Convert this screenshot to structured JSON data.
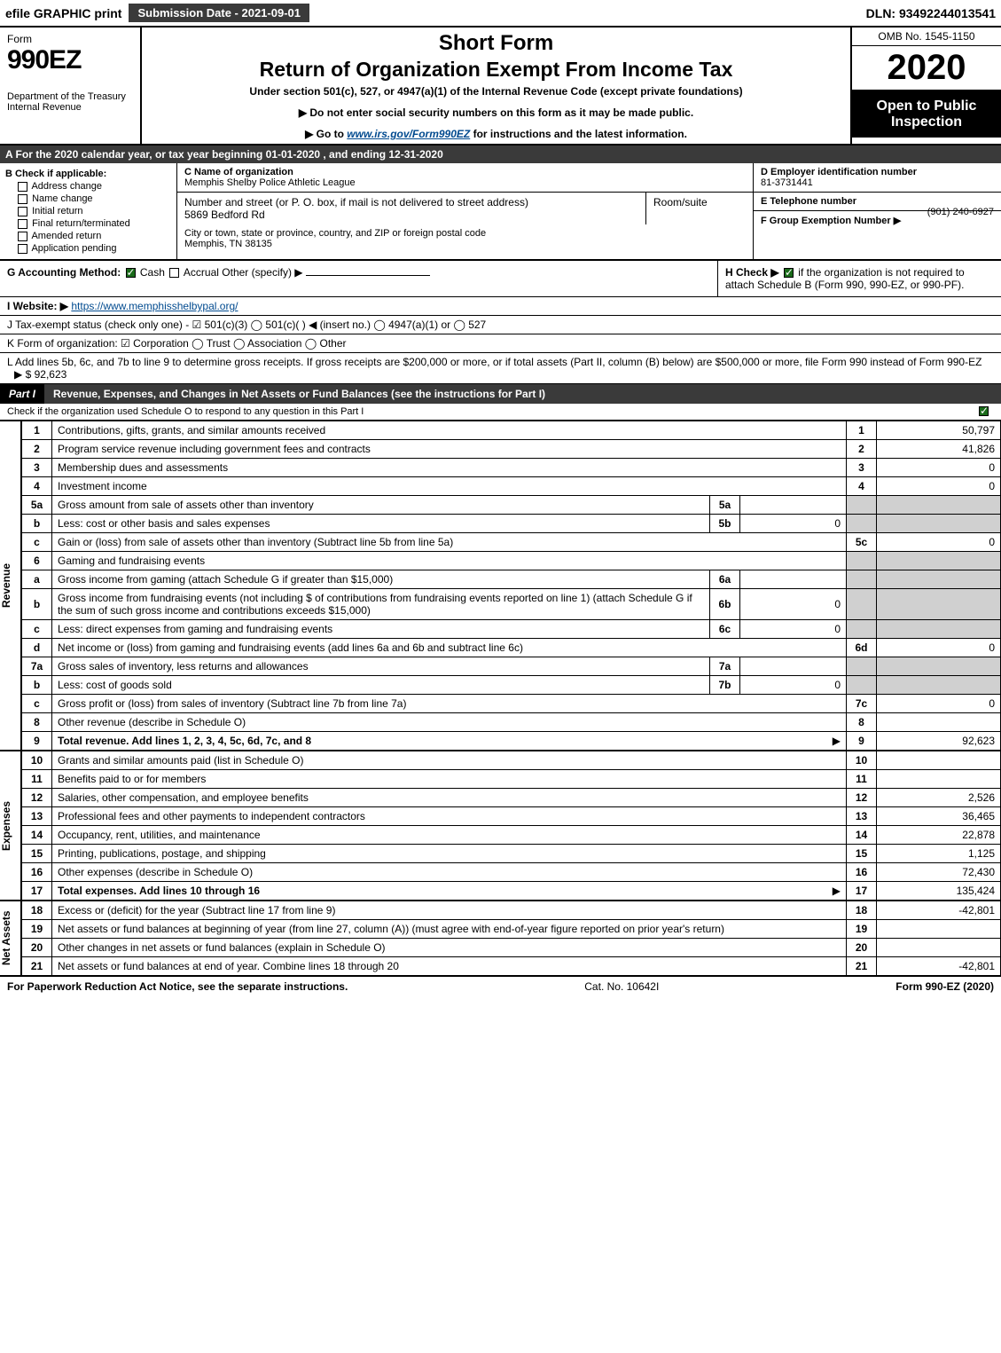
{
  "topbar": {
    "efile": "efile GRAPHIC print",
    "submission_btn": "Submission Date - 2021-09-01",
    "dln": "DLN: 93492244013541"
  },
  "header": {
    "form_label": "Form",
    "form_number": "990EZ",
    "dept": "Department of the Treasury Internal Revenue",
    "short_form": "Short Form",
    "return_title": "Return of Organization Exempt From Income Tax",
    "under_section": "Under section 501(c), 527, or 4947(a)(1) of the Internal Revenue Code (except private foundations)",
    "ssn_note": "▶ Do not enter social security numbers on this form as it may be made public.",
    "goto_note": "▶ Go to www.irs.gov/Form990EZ for instructions and the latest information.",
    "omb": "OMB No. 1545-1150",
    "year": "2020",
    "open_public": "Open to Public Inspection"
  },
  "section_a": "A  For the 2020 calendar year, or tax year beginning 01-01-2020 , and ending 12-31-2020",
  "section_b": {
    "title": "B  Check if applicable:",
    "items": [
      "Address change",
      "Name change",
      "Initial return",
      "Final return/terminated",
      "Amended return",
      "Application pending"
    ]
  },
  "section_c": {
    "label": "C Name of organization",
    "name": "Memphis Shelby Police Athletic League",
    "street_label": "Number and street (or P. O. box, if mail is not delivered to street address)",
    "street": "5869 Bedford Rd",
    "room_label": "Room/suite",
    "room": "",
    "city_label": "City or town, state or province, country, and ZIP or foreign postal code",
    "city": "Memphis, TN  38135"
  },
  "section_d": {
    "label": "D Employer identification number",
    "value": "81-3731441"
  },
  "section_e": {
    "label": "E Telephone number",
    "value": "(901) 240-6927"
  },
  "section_f": {
    "label": "F Group Exemption Number  ▶",
    "value": ""
  },
  "section_g": {
    "label": "G Accounting Method:",
    "cash": "Cash",
    "accrual": "Accrual",
    "other": "Other (specify) ▶"
  },
  "section_h": {
    "label": "H  Check ▶",
    "text": "if the organization is not required to attach Schedule B (Form 990, 990-EZ, or 990-PF)."
  },
  "section_i": {
    "label": "I Website: ▶",
    "url": "https://www.memphisshelbypal.org/"
  },
  "section_j": "J Tax-exempt status (check only one) -  ☑ 501(c)(3)  ◯ 501(c)(  ) ◀ (insert no.)  ◯ 4947(a)(1) or  ◯ 527",
  "section_k": "K Form of organization:   ☑ Corporation   ◯ Trust   ◯ Association   ◯ Other",
  "section_l": {
    "text": "L Add lines 5b, 6c, and 7b to line 9 to determine gross receipts. If gross receipts are $200,000 or more, or if total assets (Part II, column (B) below) are $500,000 or more, file Form 990 instead of Form 990-EZ",
    "arrow": "▶ $",
    "value": "92,623"
  },
  "part1": {
    "tab": "Part I",
    "title": "Revenue, Expenses, and Changes in Net Assets or Fund Balances (see the instructions for Part I)",
    "subcheck": "Check if the organization used Schedule O to respond to any question in this Part I"
  },
  "side_labels": {
    "revenue": "Revenue",
    "expenses": "Expenses",
    "net_assets": "Net Assets"
  },
  "revenue_lines": [
    {
      "num": "1",
      "desc": "Contributions, gifts, grants, and similar amounts received",
      "ref": "1",
      "val": "50,797"
    },
    {
      "num": "2",
      "desc": "Program service revenue including government fees and contracts",
      "ref": "2",
      "val": "41,826"
    },
    {
      "num": "3",
      "desc": "Membership dues and assessments",
      "ref": "3",
      "val": "0"
    },
    {
      "num": "4",
      "desc": "Investment income",
      "ref": "4",
      "val": "0"
    },
    {
      "num": "5a",
      "desc": "Gross amount from sale of assets other than inventory",
      "sub_ref": "5a",
      "sub_val": "",
      "ref": "",
      "val": "",
      "shade_right": true
    },
    {
      "num": "b",
      "desc": "Less: cost or other basis and sales expenses",
      "sub_ref": "5b",
      "sub_val": "0",
      "ref": "",
      "val": "",
      "shade_right": true
    },
    {
      "num": "c",
      "desc": "Gain or (loss) from sale of assets other than inventory (Subtract line 5b from line 5a)",
      "ref": "5c",
      "val": "0"
    },
    {
      "num": "6",
      "desc": "Gaming and fundraising events",
      "ref": "",
      "val": "",
      "shade_right": true
    },
    {
      "num": "a",
      "desc": "Gross income from gaming (attach Schedule G if greater than $15,000)",
      "sub_ref": "6a",
      "sub_val": "",
      "ref": "",
      "val": "",
      "shade_right": true
    },
    {
      "num": "b",
      "desc": "Gross income from fundraising events (not including $            of contributions from fundraising events reported on line 1) (attach Schedule G if the sum of such gross income and contributions exceeds $15,000)",
      "sub_ref": "6b",
      "sub_val": "0",
      "ref": "",
      "val": "",
      "shade_right": true
    },
    {
      "num": "c",
      "desc": "Less: direct expenses from gaming and fundraising events",
      "sub_ref": "6c",
      "sub_val": "0",
      "ref": "",
      "val": "",
      "shade_right": true
    },
    {
      "num": "d",
      "desc": "Net income or (loss) from gaming and fundraising events (add lines 6a and 6b and subtract line 6c)",
      "ref": "6d",
      "val": "0"
    },
    {
      "num": "7a",
      "desc": "Gross sales of inventory, less returns and allowances",
      "sub_ref": "7a",
      "sub_val": "",
      "ref": "",
      "val": "",
      "shade_right": true
    },
    {
      "num": "b",
      "desc": "Less: cost of goods sold",
      "sub_ref": "7b",
      "sub_val": "0",
      "ref": "",
      "val": "",
      "shade_right": true
    },
    {
      "num": "c",
      "desc": "Gross profit or (loss) from sales of inventory (Subtract line 7b from line 7a)",
      "ref": "7c",
      "val": "0"
    },
    {
      "num": "8",
      "desc": "Other revenue (describe in Schedule O)",
      "ref": "8",
      "val": ""
    },
    {
      "num": "9",
      "desc": "Total revenue. Add lines 1, 2, 3, 4, 5c, 6d, 7c, and 8",
      "ref": "9",
      "val": "92,623",
      "bold": true,
      "arrow": true
    }
  ],
  "expense_lines": [
    {
      "num": "10",
      "desc": "Grants and similar amounts paid (list in Schedule O)",
      "ref": "10",
      "val": ""
    },
    {
      "num": "11",
      "desc": "Benefits paid to or for members",
      "ref": "11",
      "val": ""
    },
    {
      "num": "12",
      "desc": "Salaries, other compensation, and employee benefits",
      "ref": "12",
      "val": "2,526"
    },
    {
      "num": "13",
      "desc": "Professional fees and other payments to independent contractors",
      "ref": "13",
      "val": "36,465"
    },
    {
      "num": "14",
      "desc": "Occupancy, rent, utilities, and maintenance",
      "ref": "14",
      "val": "22,878"
    },
    {
      "num": "15",
      "desc": "Printing, publications, postage, and shipping",
      "ref": "15",
      "val": "1,125"
    },
    {
      "num": "16",
      "desc": "Other expenses (describe in Schedule O)",
      "ref": "16",
      "val": "72,430"
    },
    {
      "num": "17",
      "desc": "Total expenses. Add lines 10 through 16",
      "ref": "17",
      "val": "135,424",
      "bold": true,
      "arrow": true
    }
  ],
  "net_lines": [
    {
      "num": "18",
      "desc": "Excess or (deficit) for the year (Subtract line 17 from line 9)",
      "ref": "18",
      "val": "-42,801"
    },
    {
      "num": "19",
      "desc": "Net assets or fund balances at beginning of year (from line 27, column (A)) (must agree with end-of-year figure reported on prior year's return)",
      "ref": "19",
      "val": ""
    },
    {
      "num": "20",
      "desc": "Other changes in net assets or fund balances (explain in Schedule O)",
      "ref": "20",
      "val": ""
    },
    {
      "num": "21",
      "desc": "Net assets or fund balances at end of year. Combine lines 18 through 20",
      "ref": "21",
      "val": "-42,801"
    }
  ],
  "footer": {
    "left": "For Paperwork Reduction Act Notice, see the separate instructions.",
    "mid": "Cat. No. 10642I",
    "right": "Form 990-EZ (2020)"
  },
  "colors": {
    "dark_bar": "#3a3a3a",
    "shade": "#d0d0d0",
    "link": "#004a8f",
    "check_green": "#1a6b1a"
  }
}
